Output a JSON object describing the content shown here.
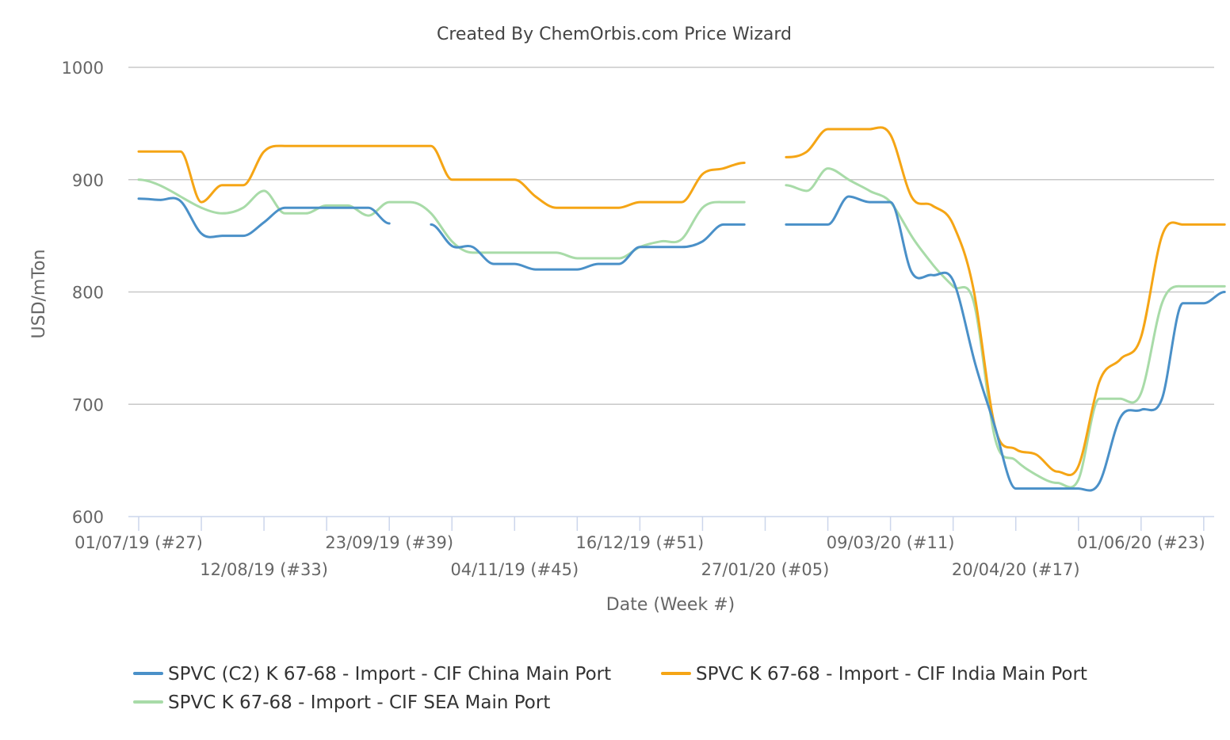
{
  "chart_data": {
    "type": "line",
    "title": "Created By ChemOrbis.com Price Wizard",
    "xlabel": "Date (Week #)",
    "ylabel": "USD/mTon",
    "ylim": [
      600,
      1000
    ],
    "yticks": [
      "600",
      "700",
      "800",
      "900",
      "1000"
    ],
    "grid": true,
    "legend_position": "bottom",
    "x_week_ticks": [
      {
        "week": 0,
        "label": "01/07/19 (#27)"
      },
      {
        "week": 6,
        "label": "12/08/19 (#33)"
      },
      {
        "week": 12,
        "label": "23/09/19 (#39)"
      },
      {
        "week": 18,
        "label": "04/11/19 (#45)"
      },
      {
        "week": 24,
        "label": "16/12/19 (#51)"
      },
      {
        "week": 30,
        "label": "27/01/20 (#05)"
      },
      {
        "week": 36,
        "label": "09/03/20 (#11)"
      },
      {
        "week": 42,
        "label": "20/04/20 (#17)"
      },
      {
        "week": 48,
        "label": "01/06/20 (#23)"
      }
    ],
    "x_minor_ticks": [
      3,
      9,
      15,
      21,
      27,
      33,
      39,
      45,
      51
    ],
    "x_range": [
      -0.17,
      51.5
    ],
    "series": [
      {
        "name": "SPVC (C2) K 67-68 - Import - CIF China Main Port",
        "color": "#4a90c8",
        "points": [
          [
            0,
            883
          ],
          [
            1,
            882
          ],
          [
            2,
            881
          ],
          [
            3,
            852
          ],
          [
            4,
            850
          ],
          [
            5,
            850
          ],
          [
            6,
            862
          ],
          [
            7,
            875
          ],
          [
            8,
            875
          ],
          [
            9,
            875
          ],
          [
            10,
            875
          ],
          [
            11,
            875
          ],
          [
            12,
            861
          ],
          [
            null,
            null
          ],
          [
            14,
            860
          ],
          [
            15,
            841
          ],
          [
            16,
            840
          ],
          [
            17,
            825
          ],
          [
            18,
            825
          ],
          [
            19,
            820
          ],
          [
            20,
            820
          ],
          [
            21,
            820
          ],
          [
            22,
            825
          ],
          [
            23,
            825
          ],
          [
            24,
            840
          ],
          [
            25,
            840
          ],
          [
            26,
            840
          ],
          [
            27,
            845
          ],
          [
            28,
            860
          ],
          [
            29,
            860
          ],
          [
            null,
            null
          ],
          [
            31,
            860
          ],
          [
            32,
            860
          ],
          [
            33,
            860
          ],
          [
            34,
            885
          ],
          [
            35,
            880
          ],
          [
            36,
            880
          ],
          [
            37,
            818
          ],
          [
            38,
            815
          ],
          [
            39,
            810
          ],
          [
            40,
            740
          ],
          [
            41,
            680
          ],
          [
            42,
            625
          ],
          [
            43,
            625
          ],
          [
            44,
            625
          ],
          [
            45,
            625
          ],
          [
            46,
            630
          ],
          [
            47,
            688
          ],
          [
            48,
            695
          ],
          [
            49,
            705
          ],
          [
            50,
            790
          ],
          [
            51,
            790
          ],
          [
            52,
            800
          ]
        ]
      },
      {
        "name": "SPVC K 67-68 - Import - CIF India Main Port",
        "color": "#f5a515",
        "points": [
          [
            0,
            925
          ],
          [
            1,
            925
          ],
          [
            2,
            925
          ],
          [
            3,
            880
          ],
          [
            4,
            895
          ],
          [
            5,
            895
          ],
          [
            6,
            925
          ],
          [
            7,
            930
          ],
          [
            8,
            930
          ],
          [
            9,
            930
          ],
          [
            10,
            930
          ],
          [
            11,
            930
          ],
          [
            12,
            930
          ],
          [
            13,
            930
          ],
          [
            14,
            930
          ],
          [
            15,
            900
          ],
          [
            16,
            900
          ],
          [
            17,
            900
          ],
          [
            18,
            900
          ],
          [
            19,
            885
          ],
          [
            20,
            875
          ],
          [
            21,
            875
          ],
          [
            22,
            875
          ],
          [
            23,
            875
          ],
          [
            24,
            880
          ],
          [
            25,
            880
          ],
          [
            26,
            880
          ],
          [
            27,
            905
          ],
          [
            28,
            910
          ],
          [
            29,
            915
          ],
          [
            null,
            null
          ],
          [
            31,
            920
          ],
          [
            32,
            925
          ],
          [
            33,
            945
          ],
          [
            34,
            945
          ],
          [
            35,
            945
          ],
          [
            36,
            940
          ],
          [
            37,
            885
          ],
          [
            38,
            877
          ],
          [
            39,
            860
          ],
          [
            40,
            800
          ],
          [
            41,
            680
          ],
          [
            42,
            660
          ],
          [
            43,
            655
          ],
          [
            44,
            640
          ],
          [
            45,
            645
          ],
          [
            46,
            720
          ],
          [
            47,
            740
          ],
          [
            48,
            760
          ],
          [
            49,
            850
          ],
          [
            50,
            860
          ],
          [
            51,
            860
          ],
          [
            52,
            860
          ]
        ]
      },
      {
        "name": "SPVC K 67-68 - Import - CIF SEA Main Port",
        "color": "#a8dba8",
        "points": [
          [
            0,
            900
          ],
          [
            1,
            895
          ],
          [
            2,
            885
          ],
          [
            3,
            875
          ],
          [
            4,
            870
          ],
          [
            5,
            875
          ],
          [
            6,
            890
          ],
          [
            7,
            870
          ],
          [
            8,
            870
          ],
          [
            9,
            877
          ],
          [
            10,
            877
          ],
          [
            11,
            868
          ],
          [
            12,
            880
          ],
          [
            13,
            880
          ],
          [
            14,
            870
          ],
          [
            15,
            845
          ],
          [
            16,
            835
          ],
          [
            17,
            835
          ],
          [
            18,
            835
          ],
          [
            19,
            835
          ],
          [
            20,
            835
          ],
          [
            21,
            830
          ],
          [
            22,
            830
          ],
          [
            23,
            830
          ],
          [
            24,
            840
          ],
          [
            25,
            845
          ],
          [
            26,
            847
          ],
          [
            27,
            875
          ],
          [
            28,
            880
          ],
          [
            29,
            880
          ],
          [
            null,
            null
          ],
          [
            31,
            895
          ],
          [
            32,
            890
          ],
          [
            33,
            910
          ],
          [
            34,
            900
          ],
          [
            35,
            890
          ],
          [
            36,
            880
          ],
          [
            37,
            850
          ],
          [
            38,
            825
          ],
          [
            39,
            805
          ],
          [
            40,
            790
          ],
          [
            41,
            670
          ],
          [
            42,
            650
          ],
          [
            43,
            637
          ],
          [
            44,
            630
          ],
          [
            45,
            633
          ],
          [
            46,
            705
          ],
          [
            47,
            705
          ],
          [
            48,
            710
          ],
          [
            49,
            790
          ],
          [
            50,
            805
          ],
          [
            51,
            805
          ],
          [
            52,
            805
          ]
        ]
      }
    ]
  }
}
